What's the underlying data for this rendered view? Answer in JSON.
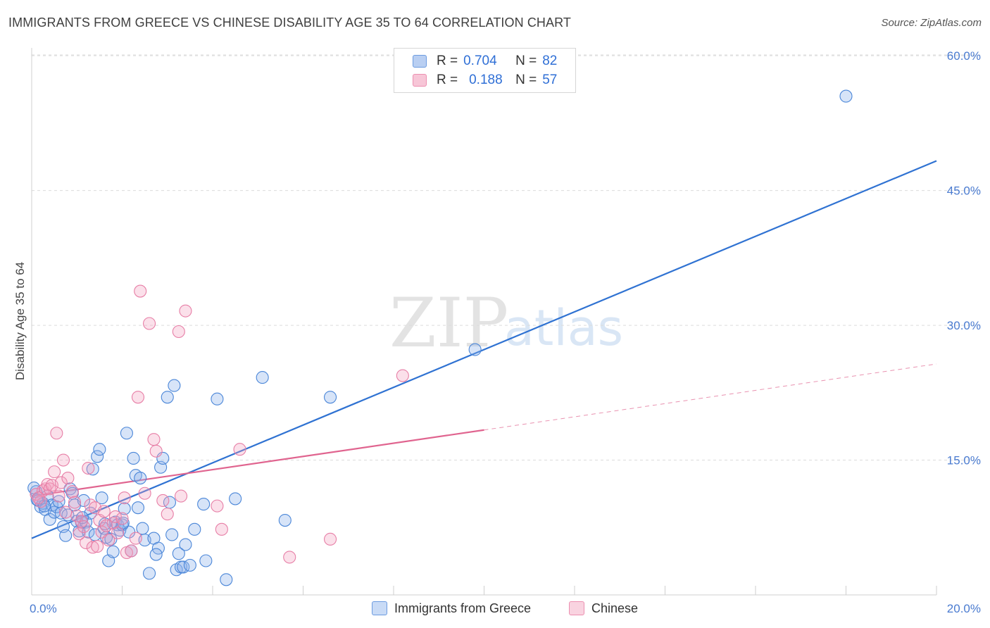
{
  "title": "IMMIGRANTS FROM GREECE VS CHINESE DISABILITY AGE 35 TO 64 CORRELATION CHART",
  "source": "Source: ZipAtlas.com",
  "watermark": {
    "zip": "ZIP",
    "atlas": "atlas"
  },
  "legend": {
    "rows": [
      {
        "r_label": "R =",
        "r_value": "0.704",
        "n_label": "N =",
        "n_value": "82",
        "color": "#6c9be0",
        "fill": "#b9cff2"
      },
      {
        "r_label": "R =",
        "r_value": "0.188",
        "n_label": "N =",
        "n_value": "57",
        "color": "#ec8fb0",
        "fill": "#f7c6d7"
      }
    ]
  },
  "bottom_legend": [
    {
      "label": "Immigrants from Greece",
      "color": "#6c9be0",
      "fill": "#c9dbf6"
    },
    {
      "label": "Chinese",
      "color": "#ec8fb0",
      "fill": "#f9d3e0"
    }
  ],
  "chart_data": {
    "type": "scatter",
    "title": "IMMIGRANTS FROM GREECE VS CHINESE DISABILITY AGE 35 TO 64 CORRELATION CHART",
    "xlabel": "",
    "ylabel": "Disability Age 35 to 64",
    "xlim": [
      0,
      20
    ],
    "ylim": [
      0,
      60
    ],
    "x_tick_labels": [
      "0.0%",
      "20.0%"
    ],
    "y_ticks": [
      15,
      30,
      45,
      60
    ],
    "y_tick_labels": [
      "15.0%",
      "30.0%",
      "45.0%",
      "60.0%"
    ],
    "grid": true,
    "series": [
      {
        "name": "Immigrants from Greece",
        "color": "#4a86d8",
        "line_color": "#2f72d2",
        "fill": "rgba(140,178,236,0.35)",
        "trend": {
          "x0": 0,
          "y0": 6.3,
          "x1": 20,
          "y1": 48.3,
          "dash_from": null
        },
        "points": [
          [
            0.1,
            11.5
          ],
          [
            0.15,
            10.5
          ],
          [
            0.2,
            9.8
          ],
          [
            0.25,
            10.2
          ],
          [
            0.3,
            9.5
          ],
          [
            0.35,
            11
          ],
          [
            0.4,
            8.4
          ],
          [
            0.45,
            10
          ],
          [
            0.5,
            9.2
          ],
          [
            0.55,
            9.8
          ],
          [
            0.6,
            10.4
          ],
          [
            0.65,
            9.1
          ],
          [
            0.7,
            7.6
          ],
          [
            0.75,
            6.6
          ],
          [
            0.8,
            8.9
          ],
          [
            0.85,
            11.8
          ],
          [
            0.9,
            11.3
          ],
          [
            0.95,
            10
          ],
          [
            1.0,
            8.2
          ],
          [
            1.05,
            7.1
          ],
          [
            1.1,
            8.1
          ],
          [
            1.15,
            10.5
          ],
          [
            1.2,
            8.1
          ],
          [
            1.25,
            7.0
          ],
          [
            1.3,
            9.1
          ],
          [
            1.35,
            14
          ],
          [
            1.4,
            6.7
          ],
          [
            1.45,
            15.4
          ],
          [
            1.5,
            16.2
          ],
          [
            1.55,
            10.8
          ],
          [
            1.6,
            7.4
          ],
          [
            1.65,
            6.4
          ],
          [
            1.7,
            3.8
          ],
          [
            1.75,
            6.2
          ],
          [
            1.8,
            4.8
          ],
          [
            1.85,
            8.1
          ],
          [
            1.9,
            7.8
          ],
          [
            1.95,
            7.2
          ],
          [
            2.0,
            7.8
          ],
          [
            2.05,
            9.6
          ],
          [
            2.1,
            18.0
          ],
          [
            2.15,
            7.0
          ],
          [
            2.2,
            4.9
          ],
          [
            2.25,
            15.2
          ],
          [
            2.3,
            13.3
          ],
          [
            2.35,
            9.7
          ],
          [
            2.4,
            13
          ],
          [
            2.45,
            7.4
          ],
          [
            2.5,
            6.1
          ],
          [
            2.6,
            2.4
          ],
          [
            2.7,
            6.3
          ],
          [
            2.8,
            5.2
          ],
          [
            2.85,
            14.2
          ],
          [
            2.9,
            15.2
          ],
          [
            3.0,
            22.0
          ],
          [
            3.05,
            10.3
          ],
          [
            3.1,
            6.7
          ],
          [
            3.15,
            23.3
          ],
          [
            3.2,
            2.8
          ],
          [
            3.25,
            4.6
          ],
          [
            3.3,
            3.1
          ],
          [
            3.35,
            3.1
          ],
          [
            3.4,
            5.6
          ],
          [
            3.5,
            3.3
          ],
          [
            3.6,
            7.3
          ],
          [
            3.8,
            10.1
          ],
          [
            3.85,
            3.8
          ],
          [
            4.1,
            21.8
          ],
          [
            4.3,
            1.7
          ],
          [
            4.5,
            10.7
          ],
          [
            5.1,
            24.2
          ],
          [
            5.6,
            8.3
          ],
          [
            6.6,
            22.0
          ],
          [
            9.8,
            27.3
          ],
          [
            18.0,
            55.5
          ],
          [
            0.05,
            11.9
          ],
          [
            0.12,
            10.6
          ],
          [
            0.28,
            9.9
          ],
          [
            1.12,
            8.6
          ],
          [
            1.62,
            7.9
          ],
          [
            2.02,
            8.0
          ],
          [
            2.75,
            4.5
          ]
        ]
      },
      {
        "name": "Chinese",
        "color": "#e77ea6",
        "line_color": "#e0648f",
        "fill": "rgba(242,160,190,0.32)",
        "trend": {
          "x0": 0,
          "y0": 11.0,
          "x1": 20,
          "y1": 25.7,
          "solid_to": 10
        },
        "points": [
          [
            0.1,
            11.2
          ],
          [
            0.2,
            10.4
          ],
          [
            0.25,
            11.6
          ],
          [
            0.3,
            11.8
          ],
          [
            0.35,
            12.3
          ],
          [
            0.4,
            11.8
          ],
          [
            0.45,
            12.2
          ],
          [
            0.5,
            13.7
          ],
          [
            0.55,
            18.0
          ],
          [
            0.6,
            11.0
          ],
          [
            0.65,
            12.5
          ],
          [
            0.7,
            15.0
          ],
          [
            0.75,
            9.2
          ],
          [
            0.8,
            13.0
          ],
          [
            0.9,
            11.5
          ],
          [
            0.95,
            10.3
          ],
          [
            1.0,
            8.8
          ],
          [
            1.05,
            6.8
          ],
          [
            1.1,
            8.2
          ],
          [
            1.15,
            7.6
          ],
          [
            1.2,
            5.8
          ],
          [
            1.25,
            14.1
          ],
          [
            1.3,
            10.0
          ],
          [
            1.35,
            5.3
          ],
          [
            1.4,
            9.7
          ],
          [
            1.45,
            5.4
          ],
          [
            1.5,
            8.3
          ],
          [
            1.55,
            7.0
          ],
          [
            1.6,
            9.3
          ],
          [
            1.65,
            7.7
          ],
          [
            1.7,
            6.1
          ],
          [
            1.8,
            8.0
          ],
          [
            1.85,
            8.7
          ],
          [
            1.9,
            6.9
          ],
          [
            2.0,
            8.5
          ],
          [
            2.05,
            10.8
          ],
          [
            2.1,
            4.7
          ],
          [
            2.2,
            4.9
          ],
          [
            2.3,
            6.3
          ],
          [
            2.35,
            22.0
          ],
          [
            2.4,
            33.8
          ],
          [
            2.5,
            11.3
          ],
          [
            2.6,
            30.2
          ],
          [
            2.7,
            17.3
          ],
          [
            2.75,
            16.0
          ],
          [
            2.9,
            10.5
          ],
          [
            3.0,
            9.0
          ],
          [
            3.3,
            11.0
          ],
          [
            3.25,
            29.3
          ],
          [
            3.4,
            31.6
          ],
          [
            4.1,
            9.9
          ],
          [
            4.2,
            7.3
          ],
          [
            4.6,
            16.2
          ],
          [
            5.7,
            4.2
          ],
          [
            6.6,
            6.2
          ],
          [
            8.2,
            24.4
          ],
          [
            0.15,
            10.8
          ]
        ]
      }
    ]
  }
}
